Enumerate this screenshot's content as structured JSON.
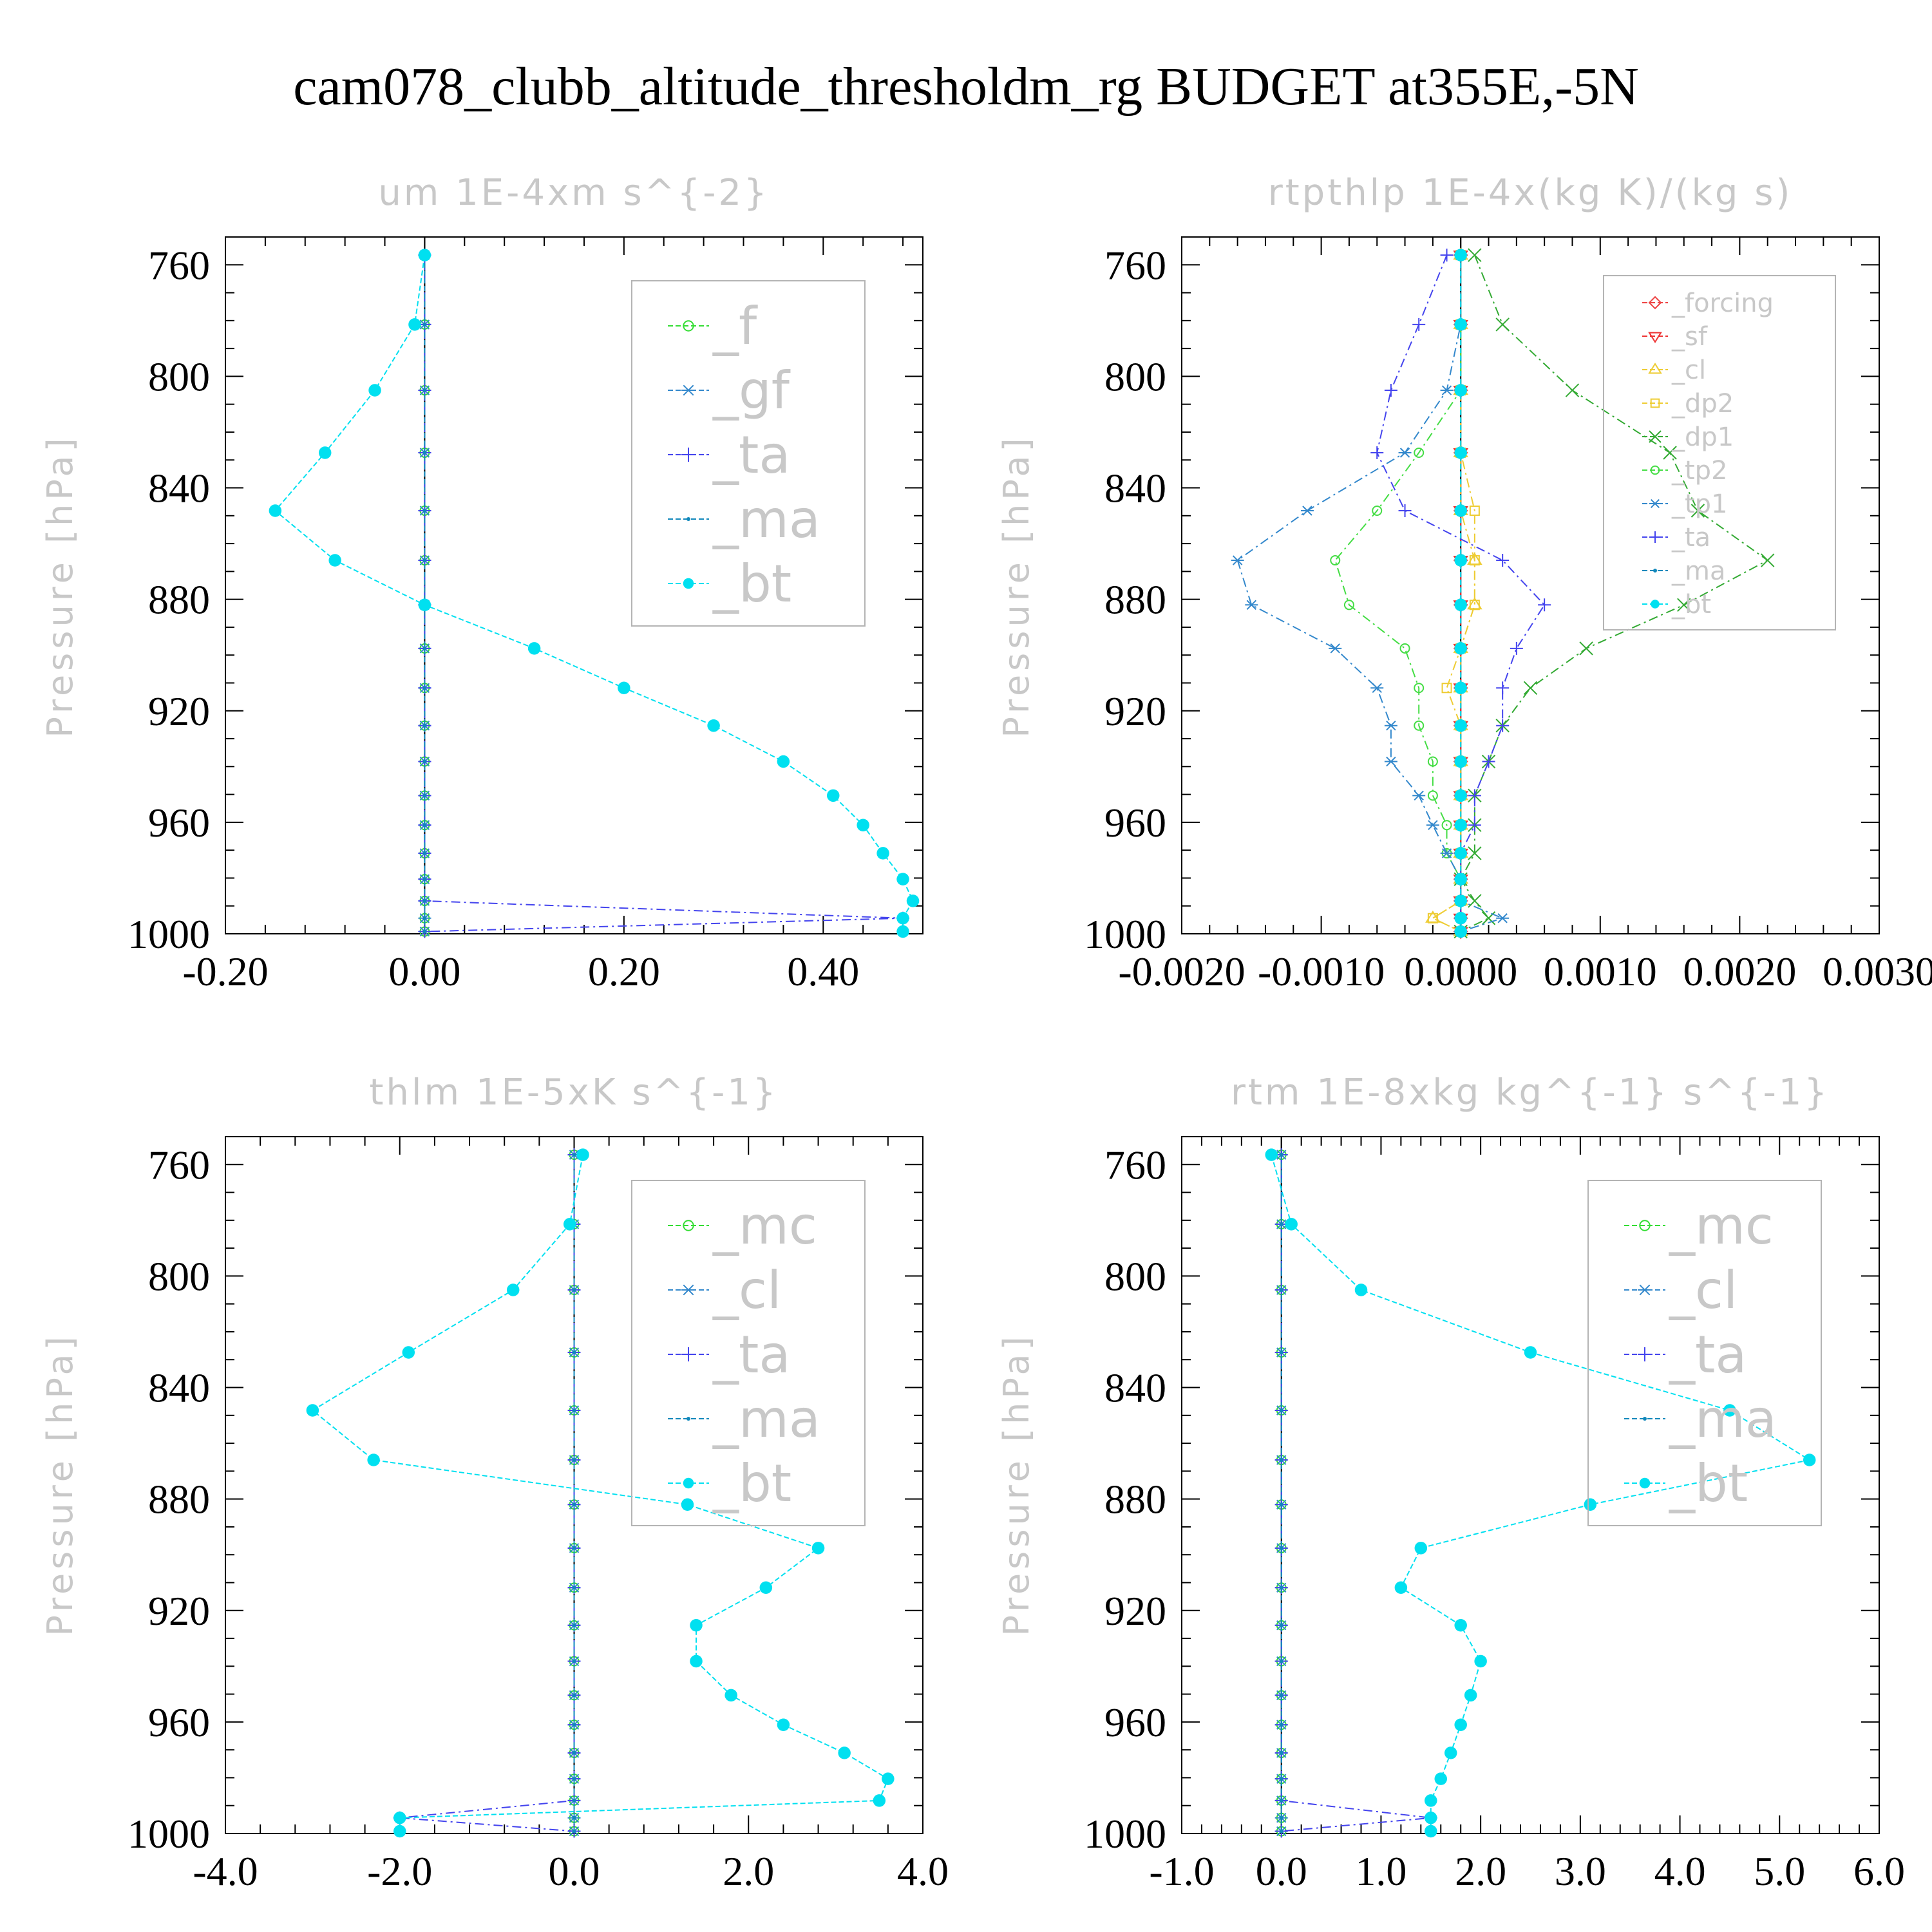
{
  "title": "cam078_clubb_altitude_thresholdm_rg  BUDGET at355E,-5N",
  "chart_data": [
    {
      "type": "line",
      "title": "um   1E-4xm s^{-2}",
      "ylabel": "Pressure [hPa]",
      "xlabel": "",
      "xlim": [
        -0.2,
        0.5
      ],
      "ylim": [
        1000,
        750
      ],
      "xticks": [
        "-0.20",
        "0.00",
        "0.20",
        "0.40"
      ],
      "yticks": [
        "760",
        "800",
        "840",
        "880",
        "920",
        "960",
        "1000"
      ],
      "legend_position": "top-right",
      "y": [
        756.5,
        781.4,
        805.0,
        827.4,
        848.2,
        866.0,
        882.0,
        897.6,
        911.8,
        925.3,
        938.2,
        950.4,
        961.0,
        971.1,
        980.4,
        988.2,
        994.4,
        999.2
      ],
      "series": [
        {
          "name": "_f",
          "color": "#33dd33",
          "marker": "circle",
          "values": [
            0,
            0,
            0,
            0,
            0,
            0,
            0,
            0,
            0,
            0,
            0,
            0,
            0,
            0,
            0,
            0,
            0,
            0
          ]
        },
        {
          "name": "_gf",
          "color": "#3388cc",
          "marker": "star",
          "values": [
            0,
            0,
            0,
            0,
            0,
            0,
            0,
            0,
            0,
            0,
            0,
            0,
            0,
            0,
            0,
            0,
            0,
            0
          ]
        },
        {
          "name": "_ta",
          "color": "#4444ee",
          "marker": "plus",
          "values": [
            0,
            0,
            0,
            0,
            0,
            0,
            0,
            0,
            0,
            0,
            0,
            0,
            0,
            0,
            0,
            0,
            0.48,
            0.0
          ]
        },
        {
          "name": "_ma",
          "color": "#1188bb",
          "marker": "dot",
          "values": [
            0,
            0,
            0,
            0,
            0,
            0,
            0,
            0,
            0,
            0,
            0,
            0,
            0,
            0,
            0,
            0,
            0,
            0
          ]
        },
        {
          "name": "_bt",
          "color": "#00e0f0",
          "marker": "filled",
          "values": [
            0.0,
            -0.01,
            -0.05,
            -0.1,
            -0.15,
            -0.09,
            0.0,
            0.11,
            0.2,
            0.29,
            0.36,
            0.41,
            0.44,
            0.46,
            0.48,
            0.49,
            0.48,
            0.48
          ]
        }
      ]
    },
    {
      "type": "line",
      "title": "rtpthlp   1E-4x(kg K)/(kg s)",
      "ylabel": "Pressure [hPa]",
      "xlabel": "",
      "xlim": [
        -0.002,
        0.003
      ],
      "ylim": [
        1000,
        750
      ],
      "xticks": [
        "-0.0020",
        "-0.0010",
        "0.0000",
        "0.0010",
        "0.0020",
        "0.0030"
      ],
      "yticks": [
        "760",
        "800",
        "840",
        "880",
        "920",
        "960",
        "1000"
      ],
      "legend_position": "top-right",
      "y": [
        756.5,
        781.4,
        805.0,
        827.4,
        848.2,
        866.0,
        882.0,
        897.6,
        911.8,
        925.3,
        938.2,
        950.4,
        961.0,
        971.1,
        980.4,
        988.2,
        994.4,
        999.2
      ],
      "series": [
        {
          "name": "_forcing",
          "color": "#ee4444",
          "marker": "diamond",
          "values": [
            0,
            0,
            0,
            0,
            0,
            0,
            0,
            0,
            0,
            0,
            0,
            0,
            0,
            0,
            0,
            0,
            0,
            0
          ]
        },
        {
          "name": "_sf",
          "color": "#ee3333",
          "marker": "tri-down",
          "values": [
            0,
            0,
            0,
            0,
            0,
            0,
            0,
            0,
            0,
            0,
            0,
            0,
            0,
            0,
            0,
            0,
            0,
            0
          ]
        },
        {
          "name": "_cl",
          "color": "#eecc33",
          "marker": "tri-up",
          "values": [
            0,
            0,
            0,
            0,
            0,
            0.0001,
            0.0001,
            0,
            0,
            0,
            0,
            0,
            0,
            0,
            0,
            0,
            -0.0002,
            0
          ]
        },
        {
          "name": "_dp2",
          "color": "#eecc33",
          "marker": "square",
          "values": [
            0,
            0,
            0,
            0,
            0.0001,
            0.0001,
            0.0001,
            0,
            -0.0001,
            0,
            0,
            0,
            0,
            0,
            0,
            0,
            -0.0002,
            0
          ]
        },
        {
          "name": "_dp1",
          "color": "#33aa33",
          "marker": "x",
          "values": [
            0.0001,
            0.0003,
            0.0008,
            0.0015,
            0.0017,
            0.0022,
            0.0016,
            0.0009,
            0.0005,
            0.0003,
            0.0002,
            0.0001,
            0.0001,
            0.0001,
            0,
            0.0001,
            0.0002,
            0
          ]
        },
        {
          "name": "_tp2",
          "color": "#44dd44",
          "marker": "circle",
          "values": [
            0,
            0,
            0,
            -0.0003,
            -0.0006,
            -0.0009,
            -0.0008,
            -0.0004,
            -0.0003,
            -0.0003,
            -0.0002,
            -0.0002,
            -0.0001,
            -0.0001,
            0,
            0,
            0,
            0
          ]
        },
        {
          "name": "_tp1",
          "color": "#3388cc",
          "marker": "star",
          "values": [
            0,
            0,
            -0.0001,
            -0.0004,
            -0.0011,
            -0.0016,
            -0.0015,
            -0.0009,
            -0.0006,
            -0.0005,
            -0.0005,
            -0.0003,
            -0.0002,
            -0.0001,
            0,
            0,
            0.0003,
            0
          ]
        },
        {
          "name": "_ta",
          "color": "#4444ee",
          "marker": "plus",
          "values": [
            -0.0001,
            -0.0003,
            -0.0005,
            -0.0006,
            -0.0004,
            0.0003,
            0.0006,
            0.0004,
            0.0003,
            0.0003,
            0.0002,
            0.0001,
            0.0001,
            0,
            0,
            0,
            0,
            0
          ]
        },
        {
          "name": "_ma",
          "color": "#1188bb",
          "marker": "dot",
          "values": [
            0,
            0,
            0,
            0,
            0,
            0,
            0,
            0,
            0,
            0,
            0,
            0,
            0,
            0,
            0,
            0,
            0,
            0
          ]
        },
        {
          "name": "_bt",
          "color": "#00e0f0",
          "marker": "filled",
          "values": [
            0,
            0,
            0,
            0,
            0,
            0,
            0,
            0,
            0,
            0,
            0,
            0,
            0,
            0,
            0,
            0,
            0,
            0
          ]
        }
      ]
    },
    {
      "type": "line",
      "title": "thlm   1E-5xK s^{-1}",
      "ylabel": "Pressure [hPa]",
      "xlabel": "",
      "xlim": [
        -4.0,
        4.0
      ],
      "ylim": [
        1000,
        750
      ],
      "xticks": [
        "-4.0",
        "-2.0",
        "0.0",
        "2.0",
        "4.0"
      ],
      "yticks": [
        "760",
        "800",
        "840",
        "880",
        "920",
        "960",
        "1000"
      ],
      "legend_position": "top-right",
      "y": [
        756.5,
        781.4,
        805.0,
        827.4,
        848.2,
        866.0,
        882.0,
        897.6,
        911.8,
        925.3,
        938.2,
        950.4,
        961.0,
        971.1,
        980.4,
        988.2,
        994.4,
        999.2
      ],
      "series": [
        {
          "name": "_mc",
          "color": "#33dd33",
          "marker": "circle",
          "values": [
            0,
            0,
            0,
            0,
            0,
            0,
            0,
            0,
            0,
            0,
            0,
            0,
            0,
            0,
            0,
            0,
            0,
            0
          ]
        },
        {
          "name": "_cl",
          "color": "#3388cc",
          "marker": "star",
          "values": [
            0,
            0,
            0,
            0,
            0,
            0,
            0,
            0,
            0,
            0,
            0,
            0,
            0,
            0,
            0,
            0,
            0,
            0
          ]
        },
        {
          "name": "_ta",
          "color": "#4444ee",
          "marker": "plus",
          "values": [
            0,
            0,
            0,
            0,
            0,
            0,
            0,
            0,
            0,
            0,
            0,
            0,
            0,
            0,
            0,
            0,
            -2.0,
            0
          ]
        },
        {
          "name": "_ma",
          "color": "#1188bb",
          "marker": "dot",
          "values": [
            0,
            0,
            0,
            0,
            0,
            0,
            0,
            0,
            0,
            0,
            0,
            0,
            0,
            0,
            0,
            0,
            0,
            0
          ]
        },
        {
          "name": "_bt",
          "color": "#00e0f0",
          "marker": "filled",
          "values": [
            0.1,
            -0.05,
            -0.7,
            -1.9,
            -3.0,
            -2.3,
            1.3,
            2.8,
            2.2,
            1.4,
            1.4,
            1.8,
            2.4,
            3.1,
            3.6,
            3.5,
            -2.0,
            -2.0
          ]
        }
      ]
    },
    {
      "type": "line",
      "title": "rtm   1E-8xkg kg^{-1} s^{-1}",
      "ylabel": "Pressure [hPa]",
      "xlabel": "",
      "xlim": [
        -1.0,
        6.0
      ],
      "ylim": [
        1000,
        750
      ],
      "xticks": [
        "-1.0",
        "0.0",
        "1.0",
        "2.0",
        "3.0",
        "4.0",
        "5.0",
        "6.0"
      ],
      "yticks": [
        "760",
        "800",
        "840",
        "880",
        "920",
        "960",
        "1000"
      ],
      "legend_position": "top-right",
      "y": [
        756.5,
        781.4,
        805.0,
        827.4,
        848.2,
        866.0,
        882.0,
        897.6,
        911.8,
        925.3,
        938.2,
        950.4,
        961.0,
        971.1,
        980.4,
        988.2,
        994.4,
        999.2
      ],
      "series": [
        {
          "name": "_mc",
          "color": "#33dd33",
          "marker": "circle",
          "values": [
            0,
            0,
            0,
            0,
            0,
            0,
            0,
            0,
            0,
            0,
            0,
            0,
            0,
            0,
            0,
            0,
            0,
            0
          ]
        },
        {
          "name": "_cl",
          "color": "#3388cc",
          "marker": "star",
          "values": [
            0,
            0,
            0,
            0,
            0,
            0,
            0,
            0,
            0,
            0,
            0,
            0,
            0,
            0,
            0,
            0,
            0,
            0
          ]
        },
        {
          "name": "_ta",
          "color": "#4444ee",
          "marker": "plus",
          "values": [
            0,
            0,
            0,
            0,
            0,
            0,
            0,
            0,
            0,
            0,
            0,
            0,
            0,
            0,
            0,
            0,
            1.5,
            0
          ]
        },
        {
          "name": "_ma",
          "color": "#1188bb",
          "marker": "dot",
          "values": [
            0,
            0,
            0,
            0,
            0,
            0,
            0,
            0,
            0,
            0,
            0,
            0,
            0,
            0,
            0,
            0,
            0,
            0
          ]
        },
        {
          "name": "_bt",
          "color": "#00e0f0",
          "marker": "filled",
          "values": [
            -0.1,
            0.1,
            0.8,
            2.5,
            4.5,
            5.3,
            3.1,
            1.4,
            1.2,
            1.8,
            2.0,
            1.9,
            1.8,
            1.7,
            1.6,
            1.5,
            1.5,
            1.5
          ]
        }
      ]
    }
  ]
}
